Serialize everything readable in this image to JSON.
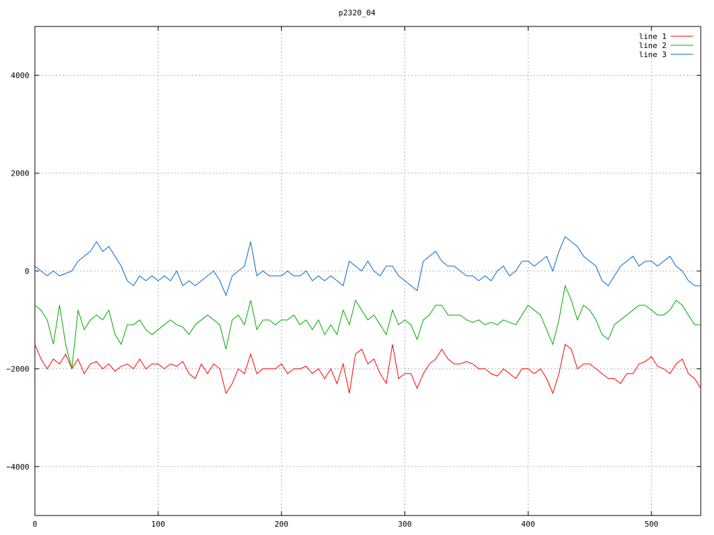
{
  "chart_data": {
    "type": "line",
    "title": "p2320_04",
    "xlabel": "",
    "ylabel": "",
    "xlim": [
      0,
      540
    ],
    "ylim": [
      -5000,
      5000
    ],
    "x_ticks": [
      0,
      100,
      200,
      300,
      400,
      500
    ],
    "y_ticks": [
      -4000,
      -2000,
      0,
      2000,
      4000
    ],
    "x_tick_labels": [
      "0",
      "100",
      "200",
      "300",
      "400",
      "500"
    ],
    "y_tick_labels": [
      "−4000",
      "−2000",
      "0",
      "2000",
      "4000"
    ],
    "grid": true,
    "legend_position": "top-right",
    "x": [
      0,
      5,
      10,
      15,
      20,
      25,
      30,
      35,
      40,
      45,
      50,
      55,
      60,
      65,
      70,
      75,
      80,
      85,
      90,
      95,
      100,
      105,
      110,
      115,
      120,
      125,
      130,
      135,
      140,
      145,
      150,
      155,
      160,
      165,
      170,
      175,
      180,
      185,
      190,
      195,
      200,
      205,
      210,
      215,
      220,
      225,
      230,
      235,
      240,
      245,
      250,
      255,
      260,
      265,
      270,
      275,
      280,
      285,
      290,
      295,
      300,
      305,
      310,
      315,
      320,
      325,
      330,
      335,
      340,
      345,
      350,
      355,
      360,
      365,
      370,
      375,
      380,
      385,
      390,
      395,
      400,
      405,
      410,
      415,
      420,
      425,
      430,
      435,
      440,
      445,
      450,
      455,
      460,
      465,
      470,
      475,
      480,
      485,
      490,
      495,
      500,
      505,
      510,
      515,
      520,
      525,
      530,
      535,
      540
    ],
    "series": [
      {
        "name": "line 1",
        "color": "#ff0000",
        "values": [
          -1500,
          -1800,
          -2000,
          -1800,
          -1900,
          -1700,
          -2000,
          -1800,
          -2100,
          -1900,
          -1850,
          -2000,
          -1900,
          -2050,
          -1950,
          -1900,
          -2000,
          -1800,
          -2000,
          -1900,
          -1900,
          -2000,
          -1900,
          -1950,
          -1850,
          -2100,
          -2200,
          -1900,
          -2100,
          -1900,
          -2000,
          -2500,
          -2300,
          -2000,
          -2100,
          -1700,
          -2100,
          -2000,
          -2000,
          -2000,
          -1900,
          -2100,
          -2000,
          -2000,
          -1950,
          -2100,
          -2000,
          -2200,
          -2000,
          -2300,
          -1900,
          -2500,
          -1700,
          -1600,
          -1900,
          -1800,
          -2100,
          -2300,
          -1500,
          -2200,
          -2100,
          -2100,
          -2400,
          -2100,
          -1900,
          -1800,
          -1600,
          -1800,
          -1900,
          -1900,
          -1850,
          -1900,
          -2000,
          -2000,
          -2100,
          -2150,
          -2000,
          -2100,
          -2200,
          -2000,
          -2000,
          -2100,
          -2000,
          -2200,
          -2500,
          -2100,
          -1500,
          -1600,
          -2000,
          -1900,
          -1900,
          -2000,
          -2100,
          -2200,
          -2200,
          -2300,
          -2100,
          -2100,
          -1900,
          -1850,
          -1750,
          -1950,
          -2000,
          -2100,
          -1900,
          -1800,
          -2100,
          -2200,
          -2400
        ]
      },
      {
        "name": "line 2",
        "color": "#00aa00",
        "values": [
          -700,
          -800,
          -1000,
          -1500,
          -700,
          -1500,
          -2000,
          -800,
          -1200,
          -1000,
          -900,
          -1000,
          -800,
          -1300,
          -1500,
          -1100,
          -1100,
          -1000,
          -1200,
          -1300,
          -1200,
          -1100,
          -1000,
          -1100,
          -1150,
          -1300,
          -1100,
          -1000,
          -900,
          -1000,
          -1100,
          -1600,
          -1000,
          -900,
          -1100,
          -600,
          -1200,
          -1000,
          -1000,
          -1100,
          -1000,
          -1000,
          -900,
          -1100,
          -1000,
          -1200,
          -1000,
          -1300,
          -1100,
          -1300,
          -800,
          -1100,
          -600,
          -800,
          -1000,
          -900,
          -1100,
          -1300,
          -800,
          -1100,
          -1000,
          -1100,
          -1400,
          -1000,
          -900,
          -700,
          -700,
          -900,
          -900,
          -900,
          -1000,
          -1050,
          -1000,
          -1100,
          -1050,
          -1100,
          -1000,
          -1050,
          -1100,
          -900,
          -700,
          -800,
          -900,
          -1200,
          -1500,
          -1000,
          -300,
          -600,
          -1000,
          -700,
          -800,
          -1000,
          -1300,
          -1400,
          -1100,
          -1000,
          -900,
          -800,
          -700,
          -700,
          -800,
          -900,
          -900,
          -800,
          -600,
          -700,
          -900,
          -1100,
          -1100
        ]
      },
      {
        "name": "line 3",
        "color": "#0066cc",
        "values": [
          100,
          0,
          -100,
          0,
          -100,
          -50,
          0,
          200,
          300,
          400,
          600,
          400,
          500,
          300,
          100,
          -200,
          -300,
          -100,
          -200,
          -100,
          -200,
          -100,
          -200,
          0,
          -300,
          -200,
          -300,
          -200,
          -100,
          0,
          -200,
          -500,
          -100,
          0,
          100,
          600,
          -100,
          0,
          -100,
          -100,
          -100,
          0,
          -100,
          -100,
          0,
          -200,
          -100,
          -200,
          -100,
          -200,
          -300,
          200,
          100,
          0,
          200,
          0,
          -100,
          100,
          100,
          -100,
          -200,
          -300,
          -400,
          200,
          300,
          400,
          200,
          100,
          100,
          0,
          -100,
          -100,
          -200,
          -100,
          -200,
          0,
          100,
          -100,
          0,
          200,
          200,
          100,
          200,
          300,
          0,
          400,
          700,
          600,
          500,
          300,
          200,
          100,
          -200,
          -300,
          -100,
          100,
          200,
          300,
          100,
          200,
          200,
          100,
          200,
          300,
          100,
          0,
          -200,
          -300,
          -300
        ]
      }
    ]
  }
}
